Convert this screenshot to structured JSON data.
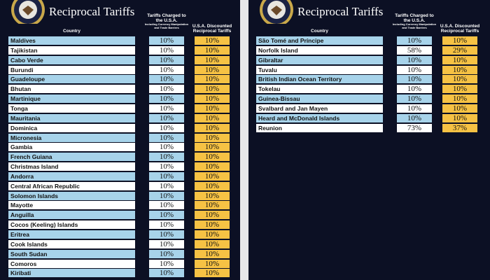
{
  "panels": [
    {
      "title": "Reciprocal Tariffs",
      "headers": {
        "country": "Country",
        "charged": "Tariffs Charged to the U.S.A.",
        "charged_note": "Including Currency Manipulation and Trade Barriers",
        "discounted": "U.S.A. Discounted Reciprocal Tariffs"
      },
      "rows": [
        [
          "Maldives",
          "10%",
          "10%"
        ],
        [
          "Tajikistan",
          "10%",
          "10%"
        ],
        [
          "Cabo Verde",
          "10%",
          "10%"
        ],
        [
          "Burundi",
          "10%",
          "10%"
        ],
        [
          "Guadeloupe",
          "10%",
          "10%"
        ],
        [
          "Bhutan",
          "10%",
          "10%"
        ],
        [
          "Martinique",
          "10%",
          "10%"
        ],
        [
          "Tonga",
          "10%",
          "10%"
        ],
        [
          "Mauritania",
          "10%",
          "10%"
        ],
        [
          "Dominica",
          "10%",
          "10%"
        ],
        [
          "Micronesia",
          "10%",
          "10%"
        ],
        [
          "Gambia",
          "10%",
          "10%"
        ],
        [
          "French Guiana",
          "10%",
          "10%"
        ],
        [
          "Christmas Island",
          "10%",
          "10%"
        ],
        [
          "Andorra",
          "10%",
          "10%"
        ],
        [
          "Central African Republic",
          "10%",
          "10%"
        ],
        [
          "Solomon Islands",
          "10%",
          "10%"
        ],
        [
          "Mayotte",
          "10%",
          "10%"
        ],
        [
          "Anguilla",
          "10%",
          "10%"
        ],
        [
          "Cocos (Keeling) Islands",
          "10%",
          "10%"
        ],
        [
          "Eritrea",
          "10%",
          "10%"
        ],
        [
          "Cook Islands",
          "10%",
          "10%"
        ],
        [
          "South Sudan",
          "10%",
          "10%"
        ],
        [
          "Comoros",
          "10%",
          "10%"
        ],
        [
          "Kiribati",
          "10%",
          "10%"
        ]
      ]
    },
    {
      "title": "Reciprocal Tariffs",
      "headers": {
        "country": "Country",
        "charged": "Tariffs Charged to the U.S.A.",
        "charged_note": "Including Currency Manipulation and Trade Barriers",
        "discounted": "U.S.A. Discounted Reciprocal Tariffs"
      },
      "rows": [
        [
          "São Tomé and Príncipe",
          "10%",
          "10%"
        ],
        [
          "Norfolk Island",
          "58%",
          "29%"
        ],
        [
          "Gibraltar",
          "10%",
          "10%"
        ],
        [
          "Tuvalu",
          "10%",
          "10%"
        ],
        [
          "British Indian Ocean Territory",
          "10%",
          "10%"
        ],
        [
          "Tokelau",
          "10%",
          "10%"
        ],
        [
          "Guinea-Bissau",
          "10%",
          "10%"
        ],
        [
          "Svalbard and Jan Mayen",
          "10%",
          "10%"
        ],
        [
          "Heard and McDonald Islands",
          "10%",
          "10%"
        ],
        [
          "Reunion",
          "73%",
          "37%"
        ]
      ]
    }
  ]
}
